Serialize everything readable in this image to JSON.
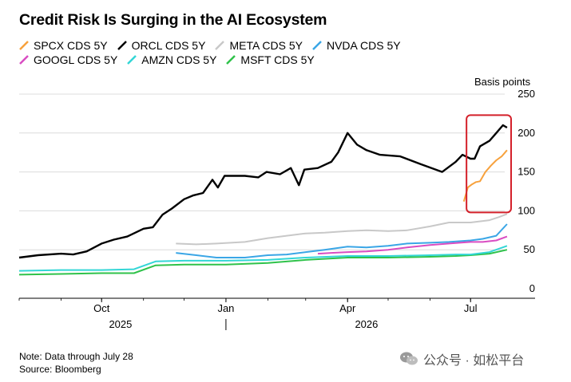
{
  "title": "Credit Risk Is Surging in the AI Ecosystem",
  "unit_label": "Basis points",
  "note": "Note: Data through July 28",
  "source": "Source: Bloomberg",
  "watermark": "公众号 · 如松平台",
  "legend": [
    {
      "label": "SPCX CDS 5Y",
      "color": "#f7a13c"
    },
    {
      "label": "ORCL CDS 5Y",
      "color": "#000000"
    },
    {
      "label": "META CDS 5Y",
      "color": "#c8c8c8"
    },
    {
      "label": "NVDA CDS 5Y",
      "color": "#3aa6e6"
    },
    {
      "label": "GOOGL CDS 5Y",
      "color": "#d94cc2"
    },
    {
      "label": "AMZN CDS 5Y",
      "color": "#33d6d6"
    },
    {
      "label": "MSFT CDS 5Y",
      "color": "#2fc24a"
    }
  ],
  "chart_data": {
    "type": "line",
    "ylim": [
      0,
      250
    ],
    "y_ticks": [
      0,
      50,
      100,
      150,
      200,
      250
    ],
    "y_tick_labels": [
      "0",
      "50",
      "100",
      "150",
      "200",
      "250"
    ],
    "x_range": [
      "2025-08-01",
      "2026-07-31"
    ],
    "x_ticks": [
      {
        "label": "Oct",
        "date": "2025-10-01"
      },
      {
        "label": "Jan",
        "date": "2026-01-01"
      },
      {
        "label": "Apr",
        "date": "2026-04-01"
      },
      {
        "label": "Jul",
        "date": "2026-07-01"
      }
    ],
    "year_labels": [
      {
        "label": "2025",
        "date": "2025-10-15"
      },
      {
        "label": "2026",
        "date": "2026-04-15"
      }
    ],
    "year_divider_date": "2026-01-01",
    "highlight_box": {
      "x_start": "2026-06-28",
      "x_end": "2026-07-31",
      "y_min": 98,
      "y_max": 223
    },
    "series": [
      {
        "name": "SPCX CDS 5Y",
        "color": "#f7a13c",
        "points": [
          [
            "2026-06-26",
            112
          ],
          [
            "2026-06-29",
            130
          ],
          [
            "2026-07-02",
            134
          ],
          [
            "2026-07-05",
            137
          ],
          [
            "2026-07-08",
            138
          ],
          [
            "2026-07-12",
            150
          ],
          [
            "2026-07-16",
            158
          ],
          [
            "2026-07-20",
            165
          ],
          [
            "2026-07-24",
            170
          ],
          [
            "2026-07-28",
            178
          ]
        ]
      },
      {
        "name": "ORCL CDS 5Y",
        "color": "#000000",
        "points": [
          [
            "2025-08-01",
            40
          ],
          [
            "2025-08-15",
            43
          ],
          [
            "2025-09-01",
            45
          ],
          [
            "2025-09-10",
            44
          ],
          [
            "2025-09-20",
            48
          ],
          [
            "2025-10-01",
            58
          ],
          [
            "2025-10-10",
            63
          ],
          [
            "2025-10-20",
            67
          ],
          [
            "2025-11-01",
            77
          ],
          [
            "2025-11-08",
            79
          ],
          [
            "2025-11-15",
            95
          ],
          [
            "2025-11-22",
            103
          ],
          [
            "2025-12-01",
            115
          ],
          [
            "2025-12-08",
            120
          ],
          [
            "2025-12-15",
            123
          ],
          [
            "2025-12-22",
            140
          ],
          [
            "2025-12-26",
            130
          ],
          [
            "2025-12-31",
            145
          ],
          [
            "2026-01-15",
            145
          ],
          [
            "2026-01-25",
            143
          ],
          [
            "2026-01-31",
            150
          ],
          [
            "2026-02-10",
            147
          ],
          [
            "2026-02-18",
            155
          ],
          [
            "2026-02-24",
            133
          ],
          [
            "2026-02-28",
            153
          ],
          [
            "2026-03-10",
            155
          ],
          [
            "2026-03-20",
            163
          ],
          [
            "2026-03-25",
            175
          ],
          [
            "2026-04-01",
            200
          ],
          [
            "2026-04-08",
            185
          ],
          [
            "2026-04-15",
            178
          ],
          [
            "2026-04-25",
            172
          ],
          [
            "2026-05-10",
            170
          ],
          [
            "2026-05-25",
            160
          ],
          [
            "2026-06-10",
            150
          ],
          [
            "2026-06-20",
            163
          ],
          [
            "2026-06-25",
            172
          ],
          [
            "2026-07-01",
            167
          ],
          [
            "2026-07-04",
            167
          ],
          [
            "2026-07-08",
            183
          ],
          [
            "2026-07-15",
            190
          ],
          [
            "2026-07-20",
            200
          ],
          [
            "2026-07-25",
            210
          ],
          [
            "2026-07-28",
            207
          ]
        ]
      },
      {
        "name": "META CDS 5Y",
        "color": "#c8c8c8",
        "points": [
          [
            "2025-11-25",
            58
          ],
          [
            "2025-12-10",
            57
          ],
          [
            "2025-12-25",
            58
          ],
          [
            "2026-01-15",
            60
          ],
          [
            "2026-02-01",
            65
          ],
          [
            "2026-02-15",
            68
          ],
          [
            "2026-03-01",
            71
          ],
          [
            "2026-03-15",
            72
          ],
          [
            "2026-04-01",
            74
          ],
          [
            "2026-04-15",
            75
          ],
          [
            "2026-05-01",
            74
          ],
          [
            "2026-05-15",
            75
          ],
          [
            "2026-06-01",
            80
          ],
          [
            "2026-06-15",
            85
          ],
          [
            "2026-07-01",
            85
          ],
          [
            "2026-07-15",
            88
          ],
          [
            "2026-07-22",
            92
          ],
          [
            "2026-07-28",
            96
          ]
        ]
      },
      {
        "name": "NVDA CDS 5Y",
        "color": "#3aa6e6",
        "points": [
          [
            "2025-11-25",
            46
          ],
          [
            "2025-12-10",
            43
          ],
          [
            "2025-12-25",
            40
          ],
          [
            "2026-01-15",
            40
          ],
          [
            "2026-02-01",
            43
          ],
          [
            "2026-02-15",
            44
          ],
          [
            "2026-03-01",
            47
          ],
          [
            "2026-03-15",
            50
          ],
          [
            "2026-04-01",
            54
          ],
          [
            "2026-04-15",
            53
          ],
          [
            "2026-05-01",
            55
          ],
          [
            "2026-05-15",
            58
          ],
          [
            "2026-06-01",
            59
          ],
          [
            "2026-06-15",
            60
          ],
          [
            "2026-07-01",
            62
          ],
          [
            "2026-07-10",
            64
          ],
          [
            "2026-07-20",
            68
          ],
          [
            "2026-07-28",
            83
          ]
        ]
      },
      {
        "name": "GOOGL CDS 5Y",
        "color": "#d94cc2",
        "points": [
          [
            "2026-03-10",
            45
          ],
          [
            "2026-03-20",
            46
          ],
          [
            "2026-04-01",
            47
          ],
          [
            "2026-04-15",
            48
          ],
          [
            "2026-05-01",
            50
          ],
          [
            "2026-05-15",
            53
          ],
          [
            "2026-06-01",
            56
          ],
          [
            "2026-06-15",
            58
          ],
          [
            "2026-07-01",
            60
          ],
          [
            "2026-07-10",
            60
          ],
          [
            "2026-07-20",
            62
          ],
          [
            "2026-07-28",
            67
          ]
        ]
      },
      {
        "name": "AMZN CDS 5Y",
        "color": "#33d6d6",
        "points": [
          [
            "2025-08-01",
            23
          ],
          [
            "2025-09-01",
            24
          ],
          [
            "2025-10-01",
            24
          ],
          [
            "2025-10-25",
            25
          ],
          [
            "2025-11-10",
            35
          ],
          [
            "2025-12-01",
            36
          ],
          [
            "2026-01-01",
            36
          ],
          [
            "2026-02-01",
            37
          ],
          [
            "2026-03-01",
            40
          ],
          [
            "2026-04-01",
            42
          ],
          [
            "2026-05-01",
            42
          ],
          [
            "2026-06-01",
            43
          ],
          [
            "2026-06-20",
            44
          ],
          [
            "2026-07-01",
            44
          ],
          [
            "2026-07-15",
            47
          ],
          [
            "2026-07-28",
            55
          ]
        ]
      },
      {
        "name": "MSFT CDS 5Y",
        "color": "#2fc24a",
        "points": [
          [
            "2025-08-01",
            18
          ],
          [
            "2025-09-01",
            19
          ],
          [
            "2025-10-01",
            20
          ],
          [
            "2025-10-25",
            20
          ],
          [
            "2025-11-10",
            30
          ],
          [
            "2025-12-01",
            31
          ],
          [
            "2026-01-01",
            31
          ],
          [
            "2026-02-01",
            33
          ],
          [
            "2026-03-01",
            37
          ],
          [
            "2026-04-01",
            40
          ],
          [
            "2026-05-01",
            40
          ],
          [
            "2026-06-01",
            41
          ],
          [
            "2026-06-20",
            42
          ],
          [
            "2026-07-01",
            43
          ],
          [
            "2026-07-15",
            45
          ],
          [
            "2026-07-28",
            50
          ]
        ]
      }
    ]
  }
}
